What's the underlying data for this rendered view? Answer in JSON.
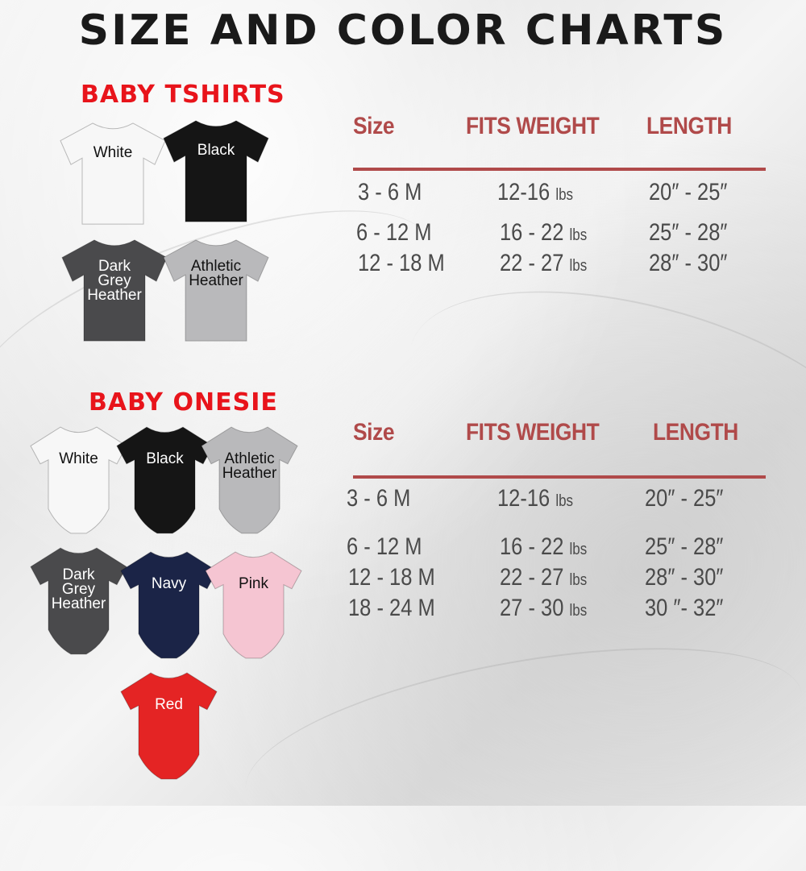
{
  "title": "SIZE AND COLOR CHARTS",
  "tshirts": {
    "title": "BABY TSHIRTS",
    "colors": [
      {
        "name": "White",
        "fill": "#f7f7f7",
        "text": "#111111"
      },
      {
        "name": "Black",
        "fill": "#151515",
        "text": "#ffffff"
      },
      {
        "name": "Dark Grey Heather",
        "fill": "#4a4a4c",
        "text": "#ffffff"
      },
      {
        "name": "Athletic Heather",
        "fill": "#b9b9bb",
        "text": "#111111"
      }
    ],
    "table": {
      "headers": [
        "Size",
        "FITS WEIGHT",
        "LENGTH"
      ],
      "rows": [
        {
          "size": "3 - 6 M",
          "weight": "12-16",
          "unit": "lbs",
          "length": "20″ - 25″"
        },
        {
          "size": "6 - 12 M",
          "weight": "16 - 22",
          "unit": "lbs",
          "length": "25″ - 28″"
        },
        {
          "size": "12 - 18 M",
          "weight": "22 - 27",
          "unit": "lbs",
          "length": "28″ - 30″"
        }
      ]
    }
  },
  "onesies": {
    "title": "BABY ONESIE",
    "colors": [
      {
        "name": "White",
        "fill": "#f7f7f7",
        "text": "#111111"
      },
      {
        "name": "Black",
        "fill": "#151515",
        "text": "#ffffff"
      },
      {
        "name": "Athletic Heather",
        "fill": "#b9b9bb",
        "text": "#111111"
      },
      {
        "name": "Dark Grey Heather",
        "fill": "#4a4a4c",
        "text": "#ffffff"
      },
      {
        "name": "Navy",
        "fill": "#1b2447",
        "text": "#ffffff"
      },
      {
        "name": "Pink",
        "fill": "#f5c5d2",
        "text": "#111111"
      },
      {
        "name": "Red",
        "fill": "#e42424",
        "text": "#ffffff"
      }
    ],
    "table": {
      "headers": [
        "Size",
        "FITS WEIGHT",
        "LENGTH"
      ],
      "rows": [
        {
          "size": "3 - 6 M",
          "weight": "12-16",
          "unit": "lbs",
          "length": "20″ - 25″"
        },
        {
          "size": "6 - 12 M",
          "weight": "16 - 22",
          "unit": "lbs",
          "length": "25″ - 28″"
        },
        {
          "size": "12 - 18 M",
          "weight": "22 - 27",
          "unit": "lbs",
          "length": "28″ - 30″"
        },
        {
          "size": "18 - 24 M",
          "weight": "27 - 30",
          "unit": "lbs",
          "length": "30 ″- 32″"
        }
      ]
    }
  },
  "accent": "#b04a4a"
}
